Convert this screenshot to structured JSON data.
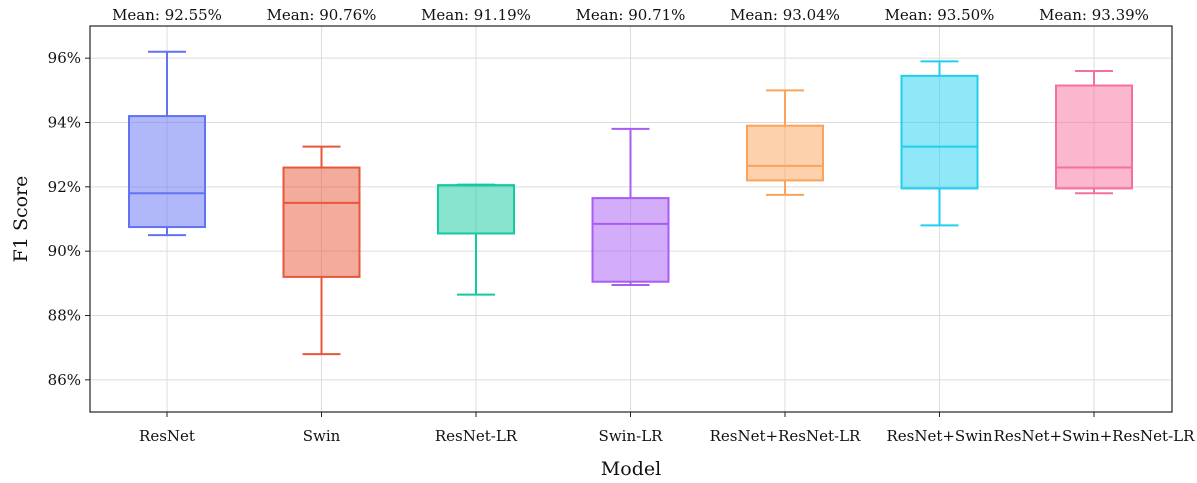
{
  "chart_data": {
    "type": "box",
    "xlabel": "Model",
    "ylabel": "F1 Score",
    "ylim": [
      85,
      97
    ],
    "y_ticks": [
      86,
      88,
      90,
      92,
      94,
      96
    ],
    "y_tick_labels": [
      "86%",
      "88%",
      "90%",
      "92%",
      "94%",
      "96%"
    ],
    "grid": true,
    "legend": "none",
    "categories": [
      "ResNet",
      "Swin",
      "ResNet-LR",
      "Swin-LR",
      "ResNet+ResNet-LR",
      "ResNet+Swin",
      "ResNet+Swin+ResNet-LR"
    ],
    "series": [
      {
        "category": "ResNet",
        "color": "#6272f5",
        "min": 90.5,
        "q1": 90.75,
        "median": 91.8,
        "q3": 94.2,
        "max": 96.2,
        "mean_label": "Mean: 92.55%"
      },
      {
        "category": "Swin",
        "color": "#e8573a",
        "min": 86.8,
        "q1": 89.2,
        "median": 91.5,
        "q3": 92.6,
        "max": 93.25,
        "mean_label": "Mean: 90.76%"
      },
      {
        "category": "ResNet-LR",
        "color": "#14c9a0",
        "min": 88.65,
        "q1": 90.55,
        "median": 92.05,
        "q3": 92.05,
        "max": 92.07,
        "mean_label": "Mean: 91.19%"
      },
      {
        "category": "Swin-LR",
        "color": "#a85cf3",
        "min": 88.95,
        "q1": 89.05,
        "median": 90.85,
        "q3": 91.65,
        "max": 93.8,
        "mean_label": "Mean: 90.71%"
      },
      {
        "category": "ResNet+ResNet-LR",
        "color": "#fba35a",
        "min": 91.75,
        "q1": 92.2,
        "median": 92.65,
        "q3": 93.9,
        "max": 95.0,
        "mean_label": "Mean: 93.04%"
      },
      {
        "category": "ResNet+Swin",
        "color": "#1fcfef",
        "min": 90.8,
        "q1": 91.95,
        "median": 93.25,
        "q3": 95.45,
        "max": 95.9,
        "mean_label": "Mean: 93.50%"
      },
      {
        "category": "ResNet+Swin+ResNet-LR",
        "color": "#f5709c",
        "min": 91.8,
        "q1": 91.95,
        "median": 92.6,
        "q3": 95.15,
        "max": 95.6,
        "mean_label": "Mean: 93.39%"
      }
    ]
  }
}
